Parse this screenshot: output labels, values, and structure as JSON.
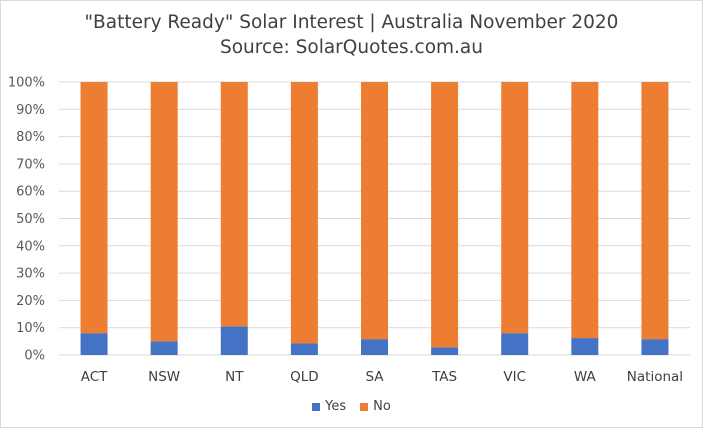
{
  "chart_data": {
    "type": "bar",
    "stacked": true,
    "title": "\"Battery Ready\" Solar Interest | Australia November 2020",
    "subtitle": "Source: SolarQuotes.com.au",
    "categories": [
      "ACT",
      "NSW",
      "NT",
      "QLD",
      "SA",
      "TAS",
      "VIC",
      "WA",
      "National"
    ],
    "series": [
      {
        "name": "Yes",
        "color": "#4472C4",
        "values": [
          8,
          5,
          10.5,
          4.2,
          5.8,
          2.8,
          8,
          6.2,
          5.8
        ]
      },
      {
        "name": "No",
        "color": "#ED7D31",
        "values": [
          92,
          95,
          89.5,
          95.8,
          94.2,
          97.2,
          92,
          93.8,
          94.2
        ]
      }
    ],
    "y_ticks": [
      "0%",
      "10%",
      "20%",
      "30%",
      "40%",
      "50%",
      "60%",
      "70%",
      "80%",
      "90%",
      "100%"
    ],
    "ylim": [
      0,
      100
    ],
    "grid": true,
    "legend_position": "bottom"
  }
}
